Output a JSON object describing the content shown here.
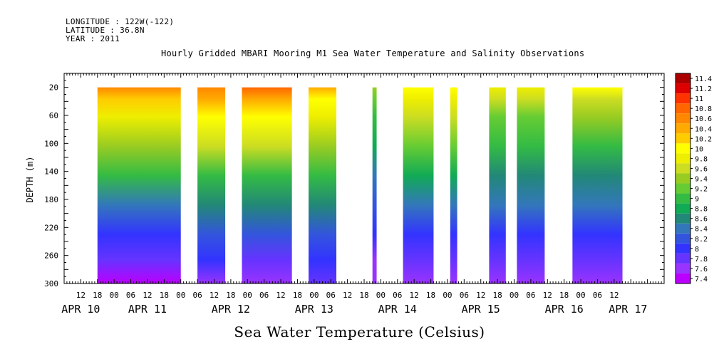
{
  "header": {
    "longitude": "LONGITUDE : 122W(-122)",
    "latitude": "LATITUDE : 36.8N",
    "year": "YEAR : 2011"
  },
  "chart_data": {
    "type": "heatmap",
    "title": "Hourly Gridded MBARI Mooring M1 Sea Water Temperature and Salinity Observations",
    "xlabel": "Sea Water Temperature (Celsius)",
    "ylabel": "DEPTH (m)",
    "y_axis": {
      "ylim": [
        300,
        0
      ],
      "ticks": [
        20,
        60,
        100,
        140,
        180,
        220,
        260,
        300
      ]
    },
    "x_axis": {
      "hour_ticks": [
        "12",
        "18",
        "00",
        "06",
        "12",
        "18",
        "00",
        "06",
        "12",
        "18",
        "00",
        "06",
        "12",
        "18",
        "00",
        "06",
        "12",
        "18",
        "00",
        "06",
        "12",
        "18",
        "00",
        "06",
        "12",
        "18",
        "00",
        "06",
        "12",
        "18",
        "00",
        "06",
        "12"
      ],
      "date_labels": [
        {
          "label": "APR 10",
          "hour": 12
        },
        {
          "label": "APR 11",
          "hour": 36
        },
        {
          "label": "APR 12",
          "hour": 66
        },
        {
          "label": "APR 13",
          "hour": 96
        },
        {
          "label": "APR 14",
          "hour": 126
        },
        {
          "label": "APR 15",
          "hour": 156
        },
        {
          "label": "APR 16",
          "hour": 186
        },
        {
          "label": "APR 17",
          "hour": 209
        }
      ]
    },
    "colorbar": {
      "levels": [
        7.4,
        7.6,
        7.8,
        8,
        8.2,
        8.4,
        8.6,
        8.8,
        9,
        9.2,
        9.4,
        9.6,
        9.8,
        10,
        10.2,
        10.4,
        10.6,
        10.8,
        11,
        11.2,
        11.4
      ],
      "colors": [
        "#bb00ff",
        "#9933ff",
        "#6633ff",
        "#3333ff",
        "#3355dd",
        "#3377bb",
        "#228877",
        "#11aa55",
        "#33bb44",
        "#66cc33",
        "#99cc22",
        "#ccdd22",
        "#eeee00",
        "#ffff00",
        "#ffcc00",
        "#ffaa00",
        "#ff8800",
        "#ff6600",
        "#ff3300",
        "#dd0000",
        "#aa0000"
      ]
    },
    "data_segments": [
      {
        "start_hour": 18,
        "end_hour": 48,
        "surface_temp": 10.5,
        "bottom_temp": 7.4
      },
      {
        "start_hour": 54,
        "end_hour": 64,
        "surface_temp": 10.6,
        "bottom_temp": 7.6
      },
      {
        "start_hour": 70,
        "end_hour": 88,
        "surface_temp": 10.7,
        "bottom_temp": 7.5
      },
      {
        "start_hour": 94,
        "end_hour": 104,
        "surface_temp": 10.3,
        "bottom_temp": 7.7
      },
      {
        "start_hour": 117,
        "end_hour": 118.5,
        "surface_temp": 9.4,
        "bottom_temp": 7.5
      },
      {
        "start_hour": 128,
        "end_hour": 139,
        "surface_temp": 10.0,
        "bottom_temp": 7.5
      },
      {
        "start_hour": 145,
        "end_hour": 147.5,
        "surface_temp": 10.0,
        "bottom_temp": 7.5
      },
      {
        "start_hour": 159,
        "end_hour": 165,
        "surface_temp": 9.7,
        "bottom_temp": 7.6
      },
      {
        "start_hour": 169,
        "end_hour": 179,
        "surface_temp": 9.7,
        "bottom_temp": 7.6
      },
      {
        "start_hour": 189,
        "end_hour": 207,
        "surface_temp": 9.9,
        "bottom_temp": 7.5
      }
    ]
  }
}
